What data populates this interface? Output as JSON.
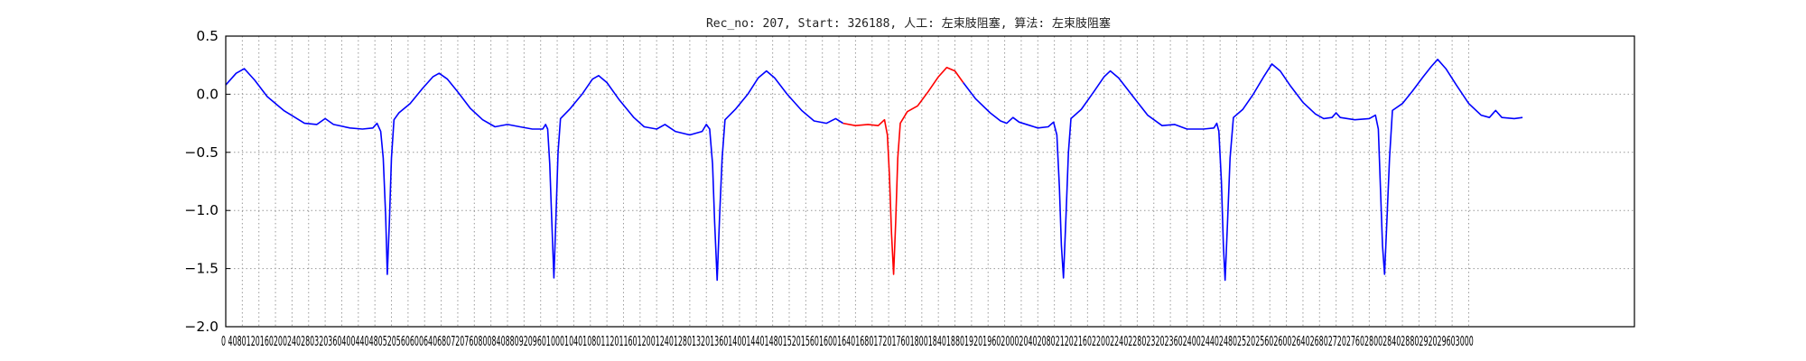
{
  "chart_data": {
    "type": "line",
    "title": "Rec_no: 207, Start: 326188, 人工: 左束肢阻塞, 算法: 左束肢阻塞",
    "xlabel": "",
    "ylabel": "",
    "xlim": [
      0,
      3400
    ],
    "ylim": [
      -2.0,
      0.5
    ],
    "grid": true,
    "y_ticks": [
      "0.5",
      "0.0",
      "−0.5",
      "−1.0",
      "−1.5",
      "−2.0"
    ],
    "y_tick_values": [
      0.5,
      0.0,
      -0.5,
      -1.0,
      -1.5,
      -2.0
    ],
    "x_tick_step": 40,
    "x_tick_max": 3000,
    "x_tick_labels_text": "0 4080120160200240280320360400440480520560600640680720760800840880920960100010401080112011601200124012801320136014001440148015201560160016401680172017601800184018801920196020002040208021202160220022402280232023602400244024802520256026002640268027202760280028402880292029603000",
    "series": [
      {
        "name": "ecg-blue-1",
        "color": "#0000ff",
        "points": [
          [
            0,
            0.08
          ],
          [
            25,
            0.18
          ],
          [
            45,
            0.22
          ],
          [
            70,
            0.12
          ],
          [
            100,
            -0.02
          ],
          [
            140,
            -0.14
          ],
          [
            190,
            -0.25
          ],
          [
            220,
            -0.26
          ],
          [
            240,
            -0.21
          ],
          [
            260,
            -0.26
          ],
          [
            300,
            -0.29
          ],
          [
            330,
            -0.3
          ],
          [
            355,
            -0.29
          ],
          [
            365,
            -0.25
          ],
          [
            374,
            -0.32
          ],
          [
            380,
            -0.55
          ],
          [
            386,
            -1.05
          ],
          [
            390,
            -1.55
          ],
          [
            395,
            -1.1
          ],
          [
            400,
            -0.55
          ],
          [
            406,
            -0.22
          ],
          [
            418,
            -0.16
          ],
          [
            445,
            -0.08
          ],
          [
            475,
            0.05
          ],
          [
            500,
            0.15
          ],
          [
            515,
            0.18
          ],
          [
            535,
            0.13
          ],
          [
            560,
            0.02
          ],
          [
            590,
            -0.12
          ],
          [
            620,
            -0.22
          ],
          [
            650,
            -0.28
          ],
          [
            680,
            -0.26
          ],
          [
            710,
            -0.28
          ],
          [
            740,
            -0.3
          ],
          [
            765,
            -0.3
          ],
          [
            772,
            -0.26
          ],
          [
            777,
            -0.3
          ],
          [
            782,
            -0.6
          ],
          [
            787,
            -1.1
          ],
          [
            792,
            -1.58
          ],
          [
            797,
            -1.05
          ],
          [
            802,
            -0.5
          ],
          [
            808,
            -0.21
          ],
          [
            830,
            -0.13
          ],
          [
            860,
            0.0
          ],
          [
            885,
            0.13
          ],
          [
            900,
            0.16
          ],
          [
            920,
            0.1
          ],
          [
            950,
            -0.05
          ],
          [
            985,
            -0.2
          ],
          [
            1010,
            -0.28
          ],
          [
            1040,
            -0.3
          ],
          [
            1060,
            -0.26
          ],
          [
            1085,
            -0.32
          ],
          [
            1120,
            -0.35
          ],
          [
            1150,
            -0.32
          ],
          [
            1160,
            -0.26
          ],
          [
            1168,
            -0.3
          ],
          [
            1175,
            -0.6
          ],
          [
            1180,
            -1.1
          ],
          [
            1186,
            -1.6
          ],
          [
            1192,
            -1.05
          ],
          [
            1198,
            -0.55
          ],
          [
            1205,
            -0.22
          ],
          [
            1230,
            -0.13
          ],
          [
            1260,
            0.0
          ],
          [
            1285,
            0.14
          ],
          [
            1305,
            0.2
          ],
          [
            1325,
            0.14
          ],
          [
            1355,
            0.0
          ],
          [
            1390,
            -0.14
          ],
          [
            1420,
            -0.23
          ],
          [
            1450,
            -0.25
          ],
          [
            1472,
            -0.21
          ],
          [
            1490,
            -0.25
          ]
        ]
      },
      {
        "name": "ecg-red-segment",
        "color": "#ff0000",
        "points": [
          [
            1490,
            -0.25
          ],
          [
            1520,
            -0.27
          ],
          [
            1550,
            -0.26
          ],
          [
            1575,
            -0.27
          ],
          [
            1590,
            -0.22
          ],
          [
            1597,
            -0.35
          ],
          [
            1602,
            -0.7
          ],
          [
            1607,
            -1.2
          ],
          [
            1612,
            -1.55
          ],
          [
            1617,
            -1.1
          ],
          [
            1622,
            -0.55
          ],
          [
            1628,
            -0.25
          ],
          [
            1645,
            -0.15
          ],
          [
            1670,
            -0.1
          ],
          [
            1695,
            0.02
          ],
          [
            1720,
            0.15
          ],
          [
            1740,
            0.23
          ],
          [
            1760,
            0.2
          ],
          [
            1780,
            0.1
          ]
        ]
      },
      {
        "name": "ecg-blue-2",
        "color": "#0000ff",
        "points": [
          [
            1780,
            0.1
          ],
          [
            1810,
            -0.04
          ],
          [
            1845,
            -0.16
          ],
          [
            1870,
            -0.23
          ],
          [
            1885,
            -0.25
          ],
          [
            1900,
            -0.2
          ],
          [
            1915,
            -0.24
          ],
          [
            1960,
            -0.29
          ],
          [
            1985,
            -0.28
          ],
          [
            1998,
            -0.24
          ],
          [
            2006,
            -0.35
          ],
          [
            2012,
            -0.8
          ],
          [
            2017,
            -1.3
          ],
          [
            2022,
            -1.58
          ],
          [
            2028,
            -1.05
          ],
          [
            2034,
            -0.5
          ],
          [
            2040,
            -0.21
          ],
          [
            2065,
            -0.13
          ],
          [
            2095,
            0.02
          ],
          [
            2120,
            0.15
          ],
          [
            2135,
            0.2
          ],
          [
            2155,
            0.14
          ],
          [
            2190,
            -0.02
          ],
          [
            2225,
            -0.18
          ],
          [
            2260,
            -0.27
          ],
          [
            2290,
            -0.26
          ],
          [
            2320,
            -0.3
          ],
          [
            2360,
            -0.3
          ],
          [
            2385,
            -0.29
          ],
          [
            2392,
            -0.25
          ],
          [
            2397,
            -0.32
          ],
          [
            2403,
            -0.75
          ],
          [
            2408,
            -1.3
          ],
          [
            2412,
            -1.6
          ],
          [
            2418,
            -1.1
          ],
          [
            2424,
            -0.55
          ],
          [
            2432,
            -0.2
          ],
          [
            2455,
            -0.13
          ],
          [
            2480,
            0.0
          ],
          [
            2505,
            0.15
          ],
          [
            2525,
            0.26
          ],
          [
            2545,
            0.2
          ],
          [
            2570,
            0.07
          ],
          [
            2600,
            -0.07
          ],
          [
            2630,
            -0.17
          ],
          [
            2650,
            -0.21
          ],
          [
            2670,
            -0.2
          ],
          [
            2680,
            -0.16
          ],
          [
            2690,
            -0.2
          ],
          [
            2725,
            -0.22
          ],
          [
            2760,
            -0.21
          ],
          [
            2775,
            -0.18
          ],
          [
            2782,
            -0.3
          ],
          [
            2787,
            -0.8
          ],
          [
            2792,
            -1.3
          ],
          [
            2797,
            -1.55
          ],
          [
            2803,
            -1.05
          ],
          [
            2809,
            -0.55
          ],
          [
            2816,
            -0.14
          ],
          [
            2840,
            -0.08
          ],
          [
            2865,
            0.03
          ],
          [
            2890,
            0.15
          ],
          [
            2910,
            0.24
          ],
          [
            2925,
            0.3
          ],
          [
            2945,
            0.22
          ],
          [
            2970,
            0.08
          ],
          [
            3000,
            -0.08
          ],
          [
            3030,
            -0.18
          ],
          [
            3050,
            -0.2
          ],
          [
            3065,
            -0.14
          ],
          [
            3080,
            -0.2
          ],
          [
            3110,
            -0.21
          ],
          [
            3130,
            -0.2
          ]
        ]
      }
    ]
  }
}
